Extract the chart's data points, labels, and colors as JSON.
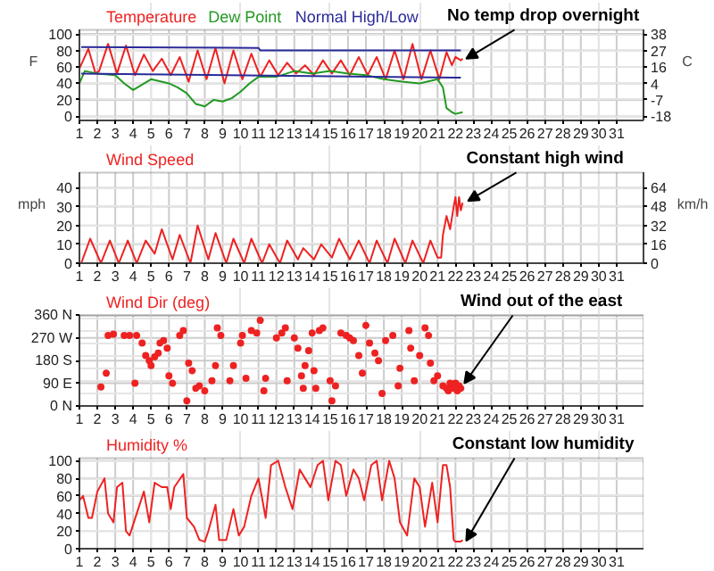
{
  "chart_data": [
    {
      "type": "line",
      "xlim": [
        1,
        32.5
      ],
      "xticks": [
        1,
        2,
        3,
        4,
        5,
        6,
        7,
        8,
        9,
        10,
        11,
        12,
        13,
        14,
        15,
        16,
        17,
        18,
        19,
        20,
        21,
        22,
        23,
        24,
        25,
        26,
        27,
        28,
        29,
        30,
        31
      ],
      "ylim": [
        -5,
        105
      ],
      "yticks": [
        0,
        20,
        40,
        60,
        80,
        100
      ],
      "y2lim": [
        -20.6,
        40.6
      ],
      "y2ticks": [
        {
          "value": 37.8,
          "label": "38"
        },
        {
          "value": 26.7,
          "label": "27"
        },
        {
          "value": 15.6,
          "label": "16"
        },
        {
          "value": 4.4,
          "label": "4"
        },
        {
          "value": -6.7,
          "label": "-7"
        },
        {
          "value": -17.8,
          "label": "-18"
        }
      ],
      "ylabel": "F",
      "y2label": "C",
      "grid": true,
      "series": [
        {
          "name": "Temperature",
          "color": "#ee2222",
          "x": [
            1.0,
            1.5,
            1.9,
            2.1,
            2.6,
            3.1,
            3.6,
            4.1,
            4.6,
            5.1,
            5.6,
            6.1,
            6.6,
            7.1,
            7.6,
            8.1,
            8.6,
            9.1,
            9.6,
            10.1,
            10.6,
            11.1,
            11.6,
            12.1,
            12.6,
            13.1,
            13.6,
            14.1,
            14.6,
            15.1,
            15.6,
            16.1,
            16.6,
            17.1,
            17.6,
            18.1,
            18.6,
            19.1,
            19.6,
            20.1,
            20.6,
            21.1,
            21.5,
            21.8,
            22.0,
            22.3,
            22.4
          ],
          "values": [
            58,
            82,
            52,
            55,
            88,
            52,
            86,
            50,
            75,
            55,
            70,
            50,
            72,
            42,
            80,
            45,
            83,
            40,
            80,
            45,
            76,
            48,
            68,
            50,
            65,
            52,
            62,
            50,
            68,
            52,
            68,
            50,
            72,
            50,
            72,
            45,
            80,
            45,
            88,
            45,
            80,
            45,
            78,
            62,
            72,
            68,
            70
          ]
        },
        {
          "name": "Dew Point",
          "color": "#229922",
          "x": [
            1.0,
            1.3,
            2.0,
            3.0,
            3.5,
            4.0,
            5.0,
            6.0,
            6.5,
            7.0,
            7.5,
            8.0,
            8.5,
            9.0,
            9.5,
            10.0,
            10.5,
            11.0,
            12.0,
            13.0,
            14.0,
            15.0,
            16.0,
            17.0,
            18.0,
            19.0,
            20.0,
            21.0,
            21.3,
            21.5,
            21.8,
            22.0,
            22.4
          ],
          "values": [
            40,
            55,
            52,
            50,
            40,
            32,
            45,
            40,
            35,
            28,
            15,
            12,
            20,
            18,
            22,
            30,
            40,
            48,
            48,
            55,
            52,
            55,
            52,
            50,
            45,
            42,
            40,
            45,
            35,
            10,
            5,
            3,
            5
          ]
        },
        {
          "name": "Normal High/Low",
          "color": "#2a2a99",
          "x": [
            1.1,
            11.0,
            11.1,
            22.3
          ],
          "values": [
            84,
            83,
            80,
            80
          ]
        },
        {
          "color": "#2a2a99",
          "x": [
            1.1,
            22.3
          ],
          "values": [
            52,
            47
          ]
        }
      ],
      "annotations": [
        {
          "text": "No temp drop overnight",
          "x": 22.3,
          "y": 70
        }
      ]
    },
    {
      "type": "line",
      "xlim": [
        1,
        32.5
      ],
      "xticks": [
        1,
        2,
        3,
        4,
        5,
        6,
        7,
        8,
        9,
        10,
        11,
        12,
        13,
        14,
        15,
        16,
        17,
        18,
        19,
        20,
        21,
        22,
        23,
        24,
        25,
        26,
        27,
        28,
        29,
        30,
        31
      ],
      "ylim": [
        0,
        48
      ],
      "yticks": [
        0,
        10,
        20,
        30,
        40
      ],
      "y2lim": [
        0,
        77.2
      ],
      "y2ticks": [
        0,
        {
          "value": 16.1,
          "label": "16"
        },
        {
          "value": 32.2,
          "label": "32"
        },
        {
          "value": 48.3,
          "label": "48"
        },
        {
          "value": 64.4,
          "label": "64"
        }
      ],
      "ylabel": "mph",
      "y2label": "km/h",
      "grid": true,
      "series": [
        {
          "name": "Wind Speed",
          "color": "#ee2222",
          "x": [
            1.1,
            1.6,
            2.2,
            2.7,
            3.2,
            3.7,
            4.2,
            4.7,
            5.2,
            5.6,
            6.2,
            6.6,
            7.2,
            7.6,
            8.2,
            8.6,
            9.2,
            9.6,
            10.2,
            10.6,
            11.2,
            11.6,
            12.2,
            12.6,
            13.2,
            13.5,
            14.1,
            14.5,
            15.1,
            15.5,
            16.1,
            16.6,
            17.2,
            17.6,
            18.2,
            18.6,
            19.2,
            19.6,
            20.2,
            20.6,
            21.0,
            21.2,
            21.3,
            21.5,
            21.7,
            21.9,
            22.0,
            22.1,
            22.2,
            22.3,
            22.4
          ],
          "values": [
            0,
            13,
            0,
            12,
            0,
            12,
            0,
            12,
            5,
            18,
            2,
            15,
            0,
            20,
            2,
            16,
            0,
            13,
            0,
            13,
            0,
            10,
            0,
            12,
            2,
            8,
            2,
            10,
            3,
            13,
            2,
            12,
            0,
            12,
            0,
            13,
            0,
            12,
            0,
            12,
            3,
            3,
            15,
            25,
            18,
            30,
            35,
            25,
            35,
            28,
            32
          ]
        }
      ],
      "annotations": [
        {
          "text": "Constant high wind",
          "x": 22.4,
          "y": 33
        }
      ]
    },
    {
      "type": "scatter",
      "marker": "circle",
      "xlim": [
        1,
        32.5
      ],
      "xticks": [
        1,
        2,
        3,
        4,
        5,
        6,
        7,
        8,
        9,
        10,
        11,
        12,
        13,
        14,
        15,
        16,
        17,
        18,
        19,
        20,
        21,
        22,
        23,
        24,
        25,
        26,
        27,
        28,
        29,
        30,
        31
      ],
      "ylim": [
        0,
        360
      ],
      "yticks": [
        {
          "value": 0,
          "label": "0 N"
        },
        {
          "value": 90,
          "label": "90 E"
        },
        {
          "value": 180,
          "label": "180 S"
        },
        {
          "value": 270,
          "label": "270 W"
        },
        {
          "value": 360,
          "label": "360 N"
        }
      ],
      "grid": true,
      "series": [
        {
          "name": "Wind Dir (deg)",
          "color": "#ee2222",
          "x": [
            2.2,
            2.5,
            2.6,
            2.9,
            3.5,
            3.8,
            4.1,
            4.2,
            4.5,
            4.7,
            4.9,
            5.0,
            5.2,
            5.4,
            5.5,
            5.7,
            5.9,
            6.0,
            6.2,
            6.6,
            6.8,
            7.0,
            7.1,
            7.3,
            7.5,
            7.7,
            8.0,
            8.4,
            8.6,
            8.7,
            8.9,
            9.4,
            9.6,
            10.0,
            10.1,
            10.3,
            10.6,
            10.9,
            11.1,
            11.3,
            11.4,
            12.0,
            12.3,
            12.5,
            12.6,
            13.0,
            13.2,
            13.4,
            13.5,
            13.6,
            13.8,
            14.0,
            14.1,
            14.2,
            14.4,
            14.6,
            15.0,
            15.1,
            15.3,
            15.6,
            15.9,
            16.1,
            16.3,
            16.6,
            16.8,
            17.0,
            17.2,
            17.5,
            17.7,
            17.9,
            18.1,
            18.5,
            18.8,
            18.9,
            19.4,
            19.5,
            19.7,
            20.0,
            20.3,
            20.5,
            20.6,
            20.8,
            21.0,
            21.3,
            21.5,
            21.6,
            21.7,
            21.8,
            21.9,
            22.0,
            22.1,
            22.2,
            22.3
          ],
          "values": [
            75,
            130,
            280,
            285,
            280,
            280,
            90,
            280,
            250,
            200,
            180,
            160,
            195,
            210,
            250,
            260,
            230,
            120,
            90,
            280,
            300,
            20,
            170,
            140,
            70,
            80,
            60,
            100,
            160,
            310,
            280,
            100,
            160,
            250,
            280,
            110,
            300,
            290,
            340,
            60,
            110,
            270,
            290,
            310,
            100,
            270,
            230,
            120,
            70,
            160,
            220,
            290,
            140,
            70,
            300,
            310,
            100,
            20,
            80,
            290,
            280,
            270,
            260,
            200,
            130,
            320,
            250,
            210,
            180,
            50,
            260,
            280,
            80,
            150,
            300,
            230,
            100,
            200,
            310,
            280,
            170,
            100,
            120,
            80,
            70,
            60,
            90,
            80,
            70,
            90,
            60,
            80,
            70
          ]
        }
      ],
      "annotations": [
        {
          "text": "Wind out of the east",
          "x": 22.2,
          "y": 90
        }
      ]
    },
    {
      "type": "line",
      "xlim": [
        1,
        32.5
      ],
      "xticks": [
        1,
        2,
        3,
        4,
        5,
        6,
        7,
        8,
        9,
        10,
        11,
        12,
        13,
        14,
        15,
        16,
        17,
        18,
        19,
        20,
        21,
        22,
        23,
        24,
        25,
        26,
        27,
        28,
        29,
        30,
        31
      ],
      "ylim": [
        0,
        103
      ],
      "yticks": [
        0,
        20,
        40,
        60,
        80,
        100
      ],
      "grid": true,
      "series": [
        {
          "name": "Humidity %",
          "color": "#ee2222",
          "x": [
            1.0,
            1.2,
            1.5,
            1.7,
            2.0,
            2.4,
            2.6,
            2.9,
            3.1,
            3.4,
            3.6,
            3.8,
            4.2,
            4.6,
            4.9,
            5.2,
            5.6,
            5.9,
            6.1,
            6.3,
            6.8,
            7.0,
            7.4,
            7.7,
            8.0,
            8.2,
            8.6,
            8.8,
            9.2,
            9.6,
            9.9,
            10.2,
            10.6,
            11.0,
            11.4,
            11.7,
            12.1,
            12.5,
            12.9,
            13.3,
            13.6,
            13.9,
            14.3,
            14.6,
            14.9,
            15.3,
            15.6,
            15.9,
            16.3,
            16.6,
            16.9,
            17.3,
            17.6,
            17.9,
            18.3,
            18.6,
            18.9,
            19.3,
            19.7,
            20.0,
            20.3,
            20.7,
            21.0,
            21.3,
            21.5,
            21.7,
            21.9,
            22.0,
            22.3,
            22.4
          ],
          "values": [
            55,
            60,
            35,
            35,
            65,
            80,
            40,
            30,
            70,
            75,
            20,
            15,
            40,
            65,
            30,
            75,
            70,
            70,
            45,
            70,
            85,
            35,
            25,
            10,
            8,
            20,
            50,
            10,
            10,
            45,
            15,
            25,
            60,
            80,
            35,
            95,
            100,
            70,
            45,
            90,
            80,
            70,
            95,
            100,
            55,
            100,
            95,
            60,
            90,
            80,
            55,
            95,
            100,
            55,
            100,
            80,
            30,
            15,
            80,
            70,
            25,
            75,
            30,
            95,
            95,
            70,
            10,
            8,
            8,
            10
          ]
        }
      ],
      "annotations": [
        {
          "text": "Constant low humidity",
          "x": 22.3,
          "y": 9
        }
      ]
    }
  ]
}
